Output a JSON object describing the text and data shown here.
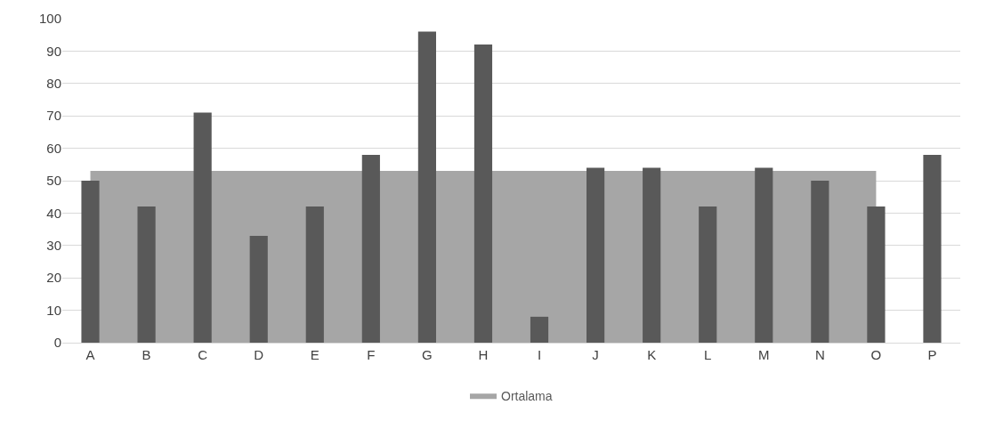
{
  "chart_data": {
    "type": "bar",
    "categories": [
      "A",
      "B",
      "C",
      "D",
      "E",
      "F",
      "G",
      "H",
      "I",
      "J",
      "K",
      "L",
      "M",
      "N",
      "O",
      "P"
    ],
    "series": [
      {
        "name": "Ortalama",
        "type": "area",
        "color": "#a6a6a6",
        "values": [
          53,
          53,
          null,
          53,
          53,
          null,
          null,
          null,
          53,
          null,
          null,
          53,
          null,
          53,
          53,
          null
        ]
      },
      {
        "color": "#595959",
        "values": [
          50,
          42,
          71,
          33,
          42,
          58,
          96,
          92,
          8,
          54,
          54,
          42,
          54,
          50,
          42,
          58
        ]
      }
    ],
    "ylim": [
      0,
      100
    ],
    "yticks": [
      0,
      10,
      20,
      30,
      40,
      50,
      60,
      70,
      80,
      90,
      100
    ],
    "grid": "y",
    "legend": "bottom"
  }
}
